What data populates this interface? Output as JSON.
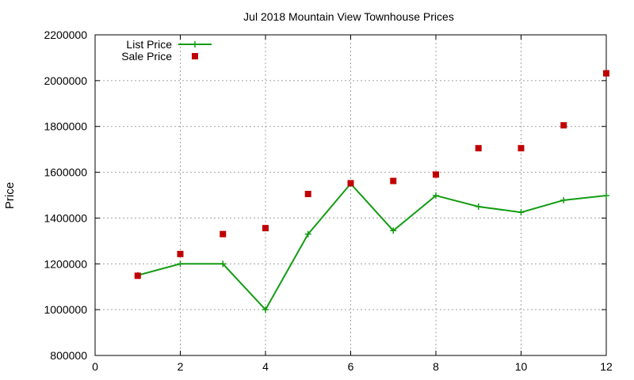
{
  "chart_data": {
    "type": "line",
    "title": "Jul 2018 Mountain View Townhouse Prices",
    "xlabel": "",
    "ylabel": "Price",
    "xlim": [
      0,
      12
    ],
    "ylim": [
      800000,
      2200000
    ],
    "x_ticks": [
      0,
      2,
      4,
      6,
      8,
      10,
      12
    ],
    "y_ticks": [
      800000,
      1000000,
      1200000,
      1400000,
      1600000,
      1800000,
      2000000,
      2200000
    ],
    "grid": true,
    "legend_position": "top-left",
    "x": [
      1,
      2,
      3,
      4,
      5,
      6,
      7,
      8,
      9,
      10,
      11,
      12
    ],
    "series": [
      {
        "name": "List Price",
        "style": "lines+points",
        "marker": "plus",
        "color": "#149c14",
        "values": [
          1150000,
          1200000,
          1200000,
          1000000,
          1330000,
          1550000,
          1345000,
          1498000,
          1450000,
          1425000,
          1478000,
          1498000
        ]
      },
      {
        "name": "Sale Price",
        "style": "points",
        "marker": "square",
        "color": "#c00000",
        "values": [
          1148000,
          1243000,
          1330000,
          1356000,
          1505000,
          1552000,
          1562000,
          1590000,
          1705000,
          1705000,
          1805000,
          2032000
        ]
      }
    ]
  }
}
